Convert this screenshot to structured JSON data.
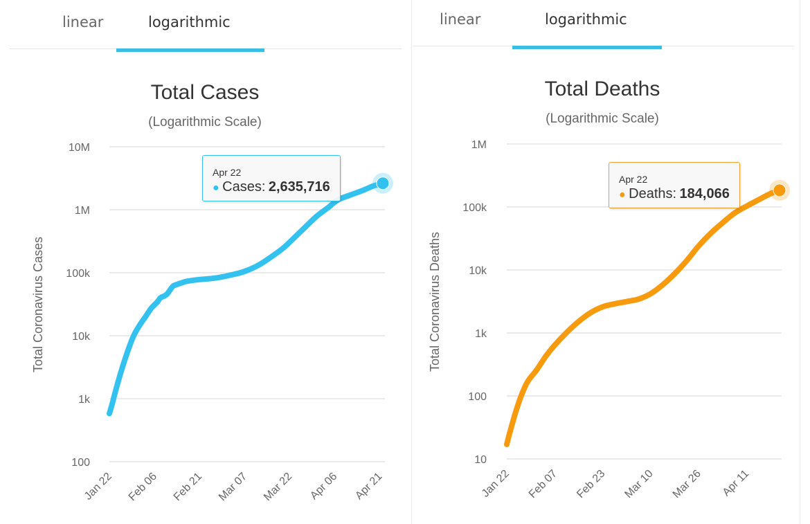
{
  "panels": [
    {
      "tabs": [
        {
          "label": "linear",
          "active": false
        },
        {
          "label": "logarithmic",
          "active": true
        }
      ],
      "tooltip": {
        "date": "Apr 22",
        "label": "Cases:",
        "value": "2,635,716"
      }
    },
    {
      "tabs": [
        {
          "label": "linear",
          "active": false
        },
        {
          "label": "logarithmic",
          "active": true
        }
      ],
      "tooltip": {
        "date": "Apr 22",
        "label": "Deaths:",
        "value": "184,066"
      }
    }
  ],
  "colors": {
    "cases": "#33c2f0",
    "deaths": "#f79a0e",
    "tab_accent": "#3cbde6"
  },
  "chart_data": [
    {
      "type": "line",
      "title": "Total Cases",
      "subtitle": "(Logarithmic Scale)",
      "xlabel": "",
      "ylabel": "Total Coronavirus Cases",
      "yscale": "log",
      "ylim": [
        100,
        10000000
      ],
      "yticks": [
        100,
        1000,
        10000,
        100000,
        1000000,
        10000000
      ],
      "ytick_labels": [
        "100",
        "1k",
        "10k",
        "100k",
        "1M",
        "10M"
      ],
      "x_start": "Jan 22",
      "x_end_day": 91,
      "xticks_day": [
        0,
        15,
        30,
        45,
        60,
        75,
        90
      ],
      "xtick_labels": [
        "Jan 22",
        "Feb 06",
        "Feb 21",
        "Mar 07",
        "Mar 22",
        "Apr 06",
        "Apr 21"
      ],
      "grid": true,
      "series": [
        {
          "name": "Cases",
          "x_day": [
            0,
            1,
            2,
            4,
            6,
            8,
            10,
            12,
            14,
            16,
            17,
            19,
            21,
            22,
            24,
            26,
            30,
            35,
            40,
            45,
            50,
            55,
            58,
            61,
            65,
            69,
            73,
            76,
            80,
            84,
            88,
            91
          ],
          "values": [
            580,
            850,
            1300,
            2800,
            5500,
            9800,
            14500,
            20000,
            27500,
            34500,
            40000,
            45000,
            60000,
            64000,
            69000,
            73500,
            78000,
            82000,
            91000,
            105000,
            135000,
            195000,
            250000,
            340000,
            520000,
            790000,
            1100000,
            1430000,
            1700000,
            2000000,
            2400000,
            2635716
          ]
        }
      ],
      "highlight": {
        "x": "Apr 22",
        "value": 2635716
      },
      "legend": "none"
    },
    {
      "type": "line",
      "title": "Total Deaths",
      "subtitle": "(Logarithmic Scale)",
      "xlabel": "",
      "ylabel": "Total Coronavirus Deaths",
      "yscale": "log",
      "ylim": [
        10,
        1000000
      ],
      "yticks": [
        10,
        100,
        1000,
        10000,
        100000,
        1000000
      ],
      "ytick_labels": [
        "10",
        "100",
        "1k",
        "10k",
        "100k",
        "1M"
      ],
      "x_start": "Jan 22",
      "x_end_day": 91,
      "xticks_day": [
        0,
        16,
        32,
        48,
        64,
        80
      ],
      "xtick_labels": [
        "Jan 22",
        "Feb 07",
        "Feb 23",
        "Mar 10",
        "Mar 26",
        "Apr 11"
      ],
      "grid": true,
      "series": [
        {
          "name": "Deaths",
          "x_day": [
            0,
            1,
            3,
            5,
            7,
            10,
            13,
            16,
            20,
            24,
            28,
            32,
            36,
            40,
            44,
            48,
            52,
            56,
            60,
            64,
            68,
            72,
            76,
            80,
            84,
            88,
            91
          ],
          "values": [
            17,
            26,
            56,
            106,
            170,
            260,
            425,
            640,
            1020,
            1520,
            2100,
            2600,
            2900,
            3150,
            3450,
            4200,
            5800,
            8700,
            14000,
            24000,
            38000,
            56000,
            80000,
            103000,
            130000,
            163000,
            184066
          ]
        }
      ],
      "highlight": {
        "x": "Apr 22",
        "value": 184066
      },
      "legend": "none"
    }
  ]
}
